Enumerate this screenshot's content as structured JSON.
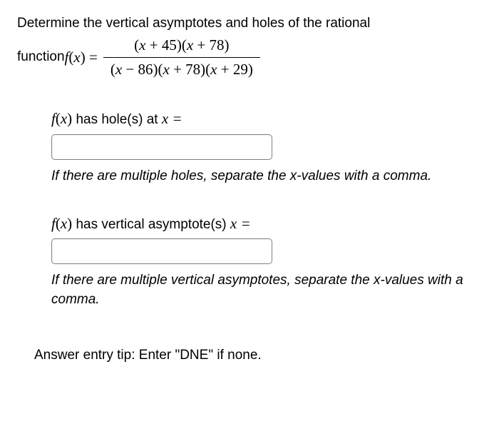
{
  "intro": {
    "line1": "Determine the vertical asymptotes and holes of the rational",
    "line2_prefix": "function ",
    "func_lhs_f": "f",
    "func_lhs_open": "(",
    "func_lhs_var": "x",
    "func_lhs_close": ")",
    "equals": " = ",
    "numerator": {
      "p1": "(",
      "v1": "x",
      "op1": " + ",
      "n1": "45",
      "p2": ")",
      "p3": "(",
      "v2": "x",
      "op2": " + ",
      "n2": "78",
      "p4": ")"
    },
    "denominator": {
      "p1": "(",
      "v1": "x",
      "op1": " − ",
      "n1": "86",
      "p2": ")",
      "p3": "(",
      "v2": "x",
      "op2": " + ",
      "n2": "78",
      "p4": ")",
      "p5": "(",
      "v3": "x",
      "op3": " + ",
      "n3": "29",
      "p6": ")"
    }
  },
  "holes": {
    "prompt_f": "f",
    "prompt_open": "(",
    "prompt_var": "x",
    "prompt_close": ")",
    "prompt_tail": " has hole(s) at ",
    "prompt_xvar": "x",
    "prompt_eq": " =",
    "input_value": "",
    "hint": "If there are multiple holes, separate the x-values with a comma."
  },
  "asymptotes": {
    "prompt_f": "f",
    "prompt_open": "(",
    "prompt_var": "x",
    "prompt_close": ")",
    "prompt_tail": " has vertical asymptote(s) ",
    "prompt_xvar": "x",
    "prompt_eq": " =",
    "input_value": "",
    "hint": "If there are multiple vertical asymptotes, separate the x-values with a comma."
  },
  "tip": "Answer entry tip: Enter \"DNE\" if none."
}
